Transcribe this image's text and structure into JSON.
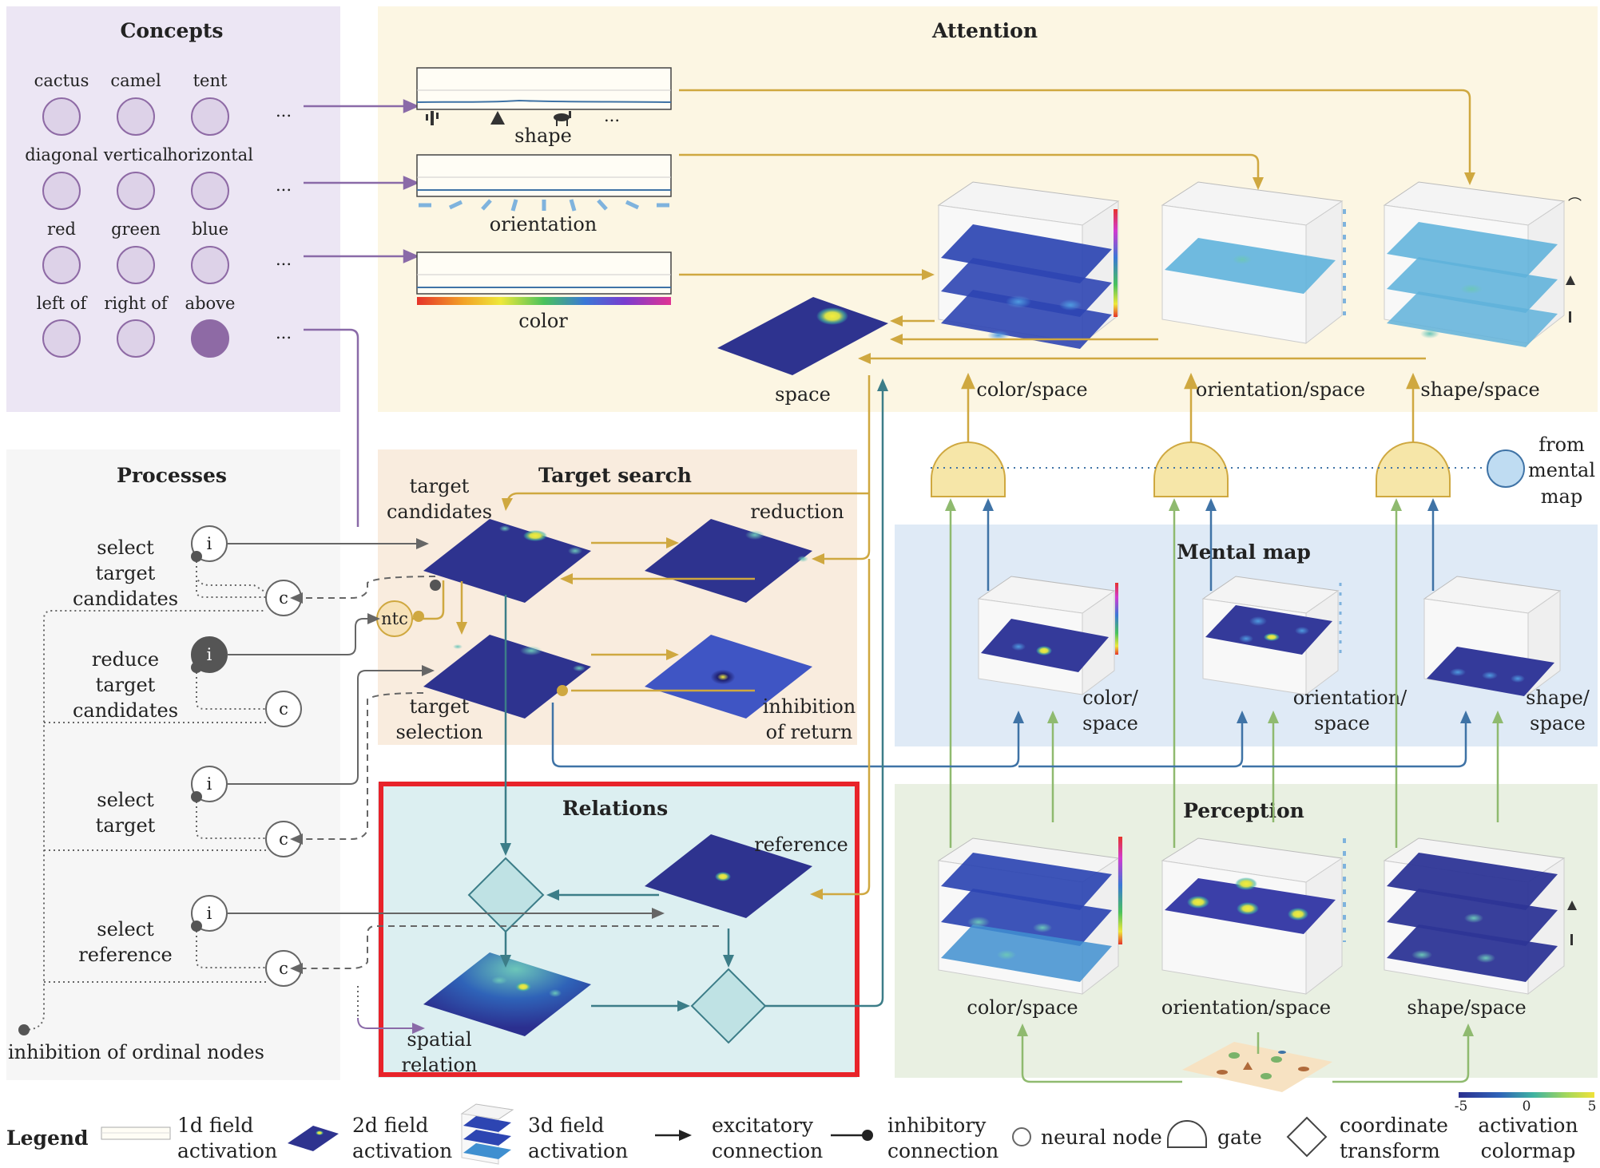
{
  "colors": {
    "concept_panel": "#ece6f4",
    "attention_panel": "#fcf6e3",
    "processes_panel": "#f6f6f6",
    "target_search_panel": "#f9ecde",
    "relations_panel": "#dceff1",
    "mental_map_panel": "#dfeaf6",
    "perception_panel": "#e9f0e2",
    "concept_node": "#ddd2e8",
    "concept_node_active": "#8e6aa5",
    "concept_arrow": "#8a6aa8",
    "gold": "#cfa840",
    "teal": "#3c7d88",
    "blue": "#3f73a6",
    "green": "#8fba6f",
    "process": "#666666",
    "highlight": "#e8232a"
  },
  "concepts": {
    "title": "Concepts",
    "rows": [
      {
        "labels": [
          "cactus",
          "camel",
          "tent"
        ],
        "more": "..."
      },
      {
        "labels": [
          "diagonal",
          "vertical",
          "horizontal"
        ],
        "more": "..."
      },
      {
        "labels": [
          "red",
          "green",
          "blue"
        ],
        "more": "..."
      },
      {
        "labels": [
          "left of",
          "right of",
          "above"
        ],
        "more": "..."
      }
    ]
  },
  "attention": {
    "title": "Attention",
    "shape_label": "shape",
    "orientation_label": "orientation",
    "color_label": "color",
    "shape_more": "...",
    "space_label": "space",
    "color_space": "color/space",
    "orientation_space": "orientation/space",
    "shape_space": "shape/space"
  },
  "from_mental_map": [
    "from",
    "mental",
    "map"
  ],
  "processes": {
    "title": "Processes",
    "items": [
      {
        "lines": [
          "select",
          "target",
          "candidates"
        ]
      },
      {
        "lines": [
          "reduce",
          "target",
          "candidates"
        ]
      },
      {
        "lines": [
          "select",
          "target"
        ]
      },
      {
        "lines": [
          "select",
          "reference"
        ]
      }
    ],
    "node_i": "i",
    "node_c": "c",
    "inhibition": "inhibition of ordinal nodes"
  },
  "target_search": {
    "title": "Target search",
    "target_candidates": [
      "target",
      "candidates"
    ],
    "reduction": "reduction",
    "ntc": "ntc",
    "target_selection": [
      "target",
      "selection"
    ],
    "inhibition_of_return": [
      "inhibition",
      "of return"
    ]
  },
  "relations": {
    "title": "Relations",
    "reference": "reference",
    "spatial_relation": [
      "spatial",
      "relation"
    ]
  },
  "mental_map": {
    "title": "Mental map",
    "color_space": [
      "color/",
      "space"
    ],
    "orientation_space": [
      "orientation/",
      "space"
    ],
    "shape_space": [
      "shape/",
      "space"
    ]
  },
  "perception": {
    "title": "Perception",
    "color_space": "color/space",
    "orientation_space": "orientation/space",
    "shape_space": "shape/space"
  },
  "legend": {
    "title": "Legend",
    "field_1d": [
      "1d field",
      "activation"
    ],
    "field_2d": [
      "2d field",
      "activation"
    ],
    "field_3d": [
      "3d field",
      "activation"
    ],
    "excitatory": [
      "excitatory",
      "connection"
    ],
    "inhibitory": [
      "inhibitory",
      "connection"
    ],
    "neural_node": "neural node",
    "gate": "gate",
    "coordinate": [
      "coordinate",
      "transform"
    ],
    "colormap": [
      "activation",
      "colormap"
    ],
    "cmap_ticks": [
      "-5",
      "0",
      "5"
    ]
  }
}
